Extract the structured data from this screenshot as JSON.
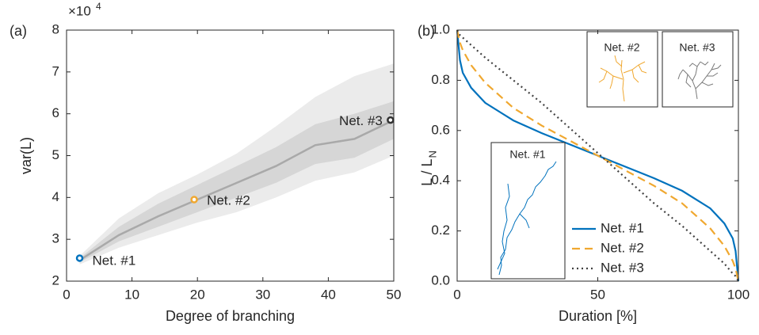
{
  "chart_data": [
    {
      "type": "band-line",
      "panel_label": "(a)",
      "xlabel": "Degree of branching",
      "ylabel": "var(L)",
      "y_multiplier": "×10",
      "y_multiplier_exponent": "4",
      "xlim": [
        0,
        50
      ],
      "xticks": [
        0,
        10,
        20,
        30,
        40,
        50
      ],
      "ylim": [
        2,
        8
      ],
      "yticks": [
        2,
        3,
        4,
        5,
        6,
        7,
        8
      ],
      "x": [
        2,
        8,
        14,
        20,
        26,
        32,
        38,
        44,
        50
      ],
      "mean": [
        2.5,
        3.1,
        3.55,
        3.95,
        4.35,
        4.75,
        5.25,
        5.4,
        5.85
      ],
      "inner_band": {
        "lower": [
          2.45,
          2.95,
          3.3,
          3.65,
          4.0,
          4.35,
          4.8,
          4.95,
          5.4
        ],
        "upper": [
          2.55,
          3.3,
          3.85,
          4.3,
          4.75,
          5.2,
          5.75,
          6.0,
          6.3
        ]
      },
      "outer_band": {
        "lower": [
          2.4,
          2.8,
          3.1,
          3.4,
          3.65,
          4.0,
          4.4,
          4.6,
          5.0
        ],
        "upper": [
          2.6,
          3.5,
          4.1,
          4.55,
          5.05,
          5.7,
          6.4,
          6.9,
          7.2
        ]
      },
      "mean_color": "#a9a9a9",
      "inner_color": "#d6d6d6",
      "outer_color": "#ebebeb",
      "points": [
        {
          "label": "Net. #1",
          "x": 2,
          "y": 2.55,
          "color": "#0072bd"
        },
        {
          "label": "Net. #2",
          "x": 19.5,
          "y": 3.95,
          "color": "#f0a830"
        },
        {
          "label": "Net. #3",
          "x": 49.5,
          "y": 5.85,
          "color": "#333333"
        }
      ]
    },
    {
      "type": "line",
      "panel_label": "(b)",
      "xlabel": "Duration [%]",
      "ylabel": "L / L",
      "ylabel_subscript": "N",
      "xlim": [
        0,
        100
      ],
      "xticks": [
        0,
        50,
        100
      ],
      "ylim": [
        0,
        1
      ],
      "yticks": [
        {
          "value": 0,
          "label": "0.0"
        },
        0.2,
        0.4,
        0.6,
        0.8,
        {
          "value": 1,
          "label": "1.0"
        }
      ],
      "x": [
        0,
        1,
        2,
        5,
        10,
        20,
        30,
        40,
        50,
        60,
        70,
        80,
        90,
        95,
        98,
        99,
        100
      ],
      "series": [
        {
          "name": "Net. #1",
          "color": "#0072bd",
          "style": "solid",
          "values": [
            1.0,
            0.88,
            0.83,
            0.77,
            0.71,
            0.64,
            0.59,
            0.545,
            0.5,
            0.455,
            0.41,
            0.36,
            0.29,
            0.23,
            0.17,
            0.12,
            0.0
          ]
        },
        {
          "name": "Net. #2",
          "color": "#f0a830",
          "style": "dashed",
          "values": [
            1.0,
            0.95,
            0.92,
            0.86,
            0.79,
            0.69,
            0.62,
            0.56,
            0.5,
            0.44,
            0.38,
            0.31,
            0.21,
            0.14,
            0.08,
            0.05,
            0.0
          ]
        },
        {
          "name": "Net. #3",
          "color": "#404040",
          "style": "dotted",
          "values": [
            1.0,
            0.98,
            0.97,
            0.94,
            0.89,
            0.8,
            0.71,
            0.61,
            0.51,
            0.41,
            0.31,
            0.22,
            0.12,
            0.07,
            0.03,
            0.02,
            0.0
          ]
        }
      ],
      "legend": "lower right",
      "insets": [
        "Net. #1",
        "Net. #2",
        "Net. #3"
      ]
    }
  ]
}
